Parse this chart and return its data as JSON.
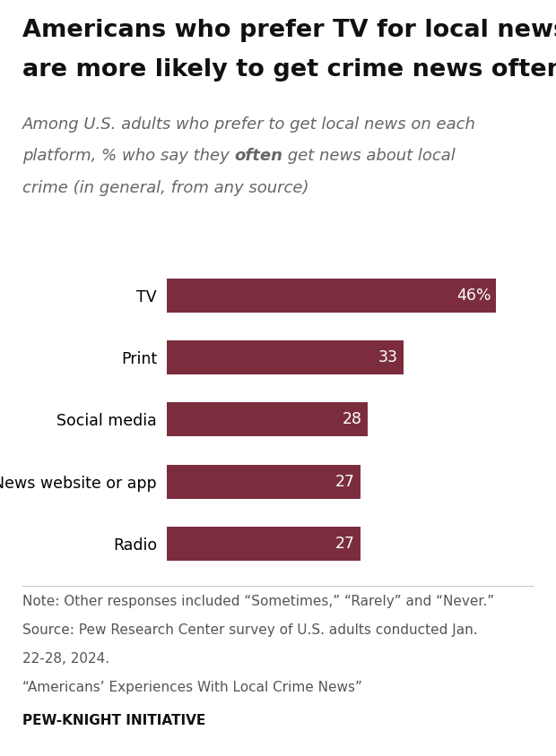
{
  "title_line1": "Americans who prefer TV for local news",
  "title_line2": "are more likely to get crime news often",
  "subtitle_line1": "Among U.S. adults who prefer to get local news on each",
  "subtitle_line2_pre": "platform, % who say they ",
  "subtitle_line2_bold": "often",
  "subtitle_line2_post": " get news about local",
  "subtitle_line3": "crime (in general, from any source)",
  "categories": [
    "TV",
    "Print",
    "Social media",
    "News website or app",
    "Radio"
  ],
  "values": [
    46,
    33,
    28,
    27,
    27
  ],
  "bar_color": "#7b2d3e",
  "label_color": "#ffffff",
  "value_labels": [
    "46%",
    "33",
    "28",
    "27",
    "27"
  ],
  "xlim": [
    0,
    52
  ],
  "note_line1": "Note: Other responses included “Sometimes,” “Rarely” and “Never.”",
  "note_line2": "Source: Pew Research Center survey of U.S. adults conducted Jan.",
  "note_line3": "22-28, 2024.",
  "note_line4": "“Americans’ Experiences With Local Crime News”",
  "footer_text": "PEW-KNIGHT INITIATIVE",
  "background_color": "#ffffff",
  "title_fontsize": 19.5,
  "subtitle_fontsize": 13.0,
  "category_fontsize": 12.5,
  "value_fontsize": 12.5,
  "note_fontsize": 11.0,
  "footer_fontsize": 11.0,
  "title_color": "#111111",
  "subtitle_color": "#666666",
  "note_color": "#555555",
  "footer_color": "#111111"
}
